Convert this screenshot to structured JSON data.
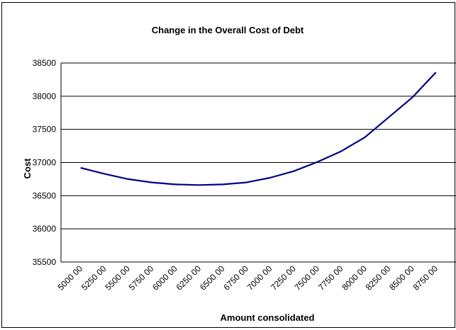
{
  "chart_data": {
    "type": "line",
    "title": "Change in the Overall Cost of Debt",
    "xlabel": "Amount consolidated",
    "ylabel": "Cost",
    "categories": [
      "500000",
      "525000",
      "550000",
      "575000",
      "600000",
      "625000",
      "650000",
      "675000",
      "700000",
      "725000",
      "750000",
      "775000",
      "800000",
      "825000",
      "850000",
      "875000"
    ],
    "x_tick_labels": [
      "5000 00",
      "5250 00",
      "5500 00",
      "5750 00",
      "6000 00",
      "6250 00",
      "6500 00",
      "6750 00",
      "7000 00",
      "7250 00",
      "7500 00",
      "7750 00",
      "8000 00",
      "8250 00",
      "8500 00",
      "8750 00"
    ],
    "x": [
      502000,
      527000,
      552000,
      577000,
      602000,
      627000,
      652000,
      677000,
      702000,
      727000,
      752000,
      777000,
      802000,
      827000,
      852000,
      877000
    ],
    "series": [
      {
        "values": [
          36920,
          36830,
          36750,
          36700,
          36670,
          36660,
          36670,
          36700,
          36770,
          36870,
          37010,
          37170,
          37380,
          37680,
          37980,
          38360
        ]
      }
    ],
    "ylim": [
      35500,
      38500
    ],
    "yticks": [
      35500,
      36000,
      36500,
      37000,
      37500,
      38000,
      38500
    ],
    "grid": true,
    "legend": "none",
    "line_color": "#000080"
  }
}
